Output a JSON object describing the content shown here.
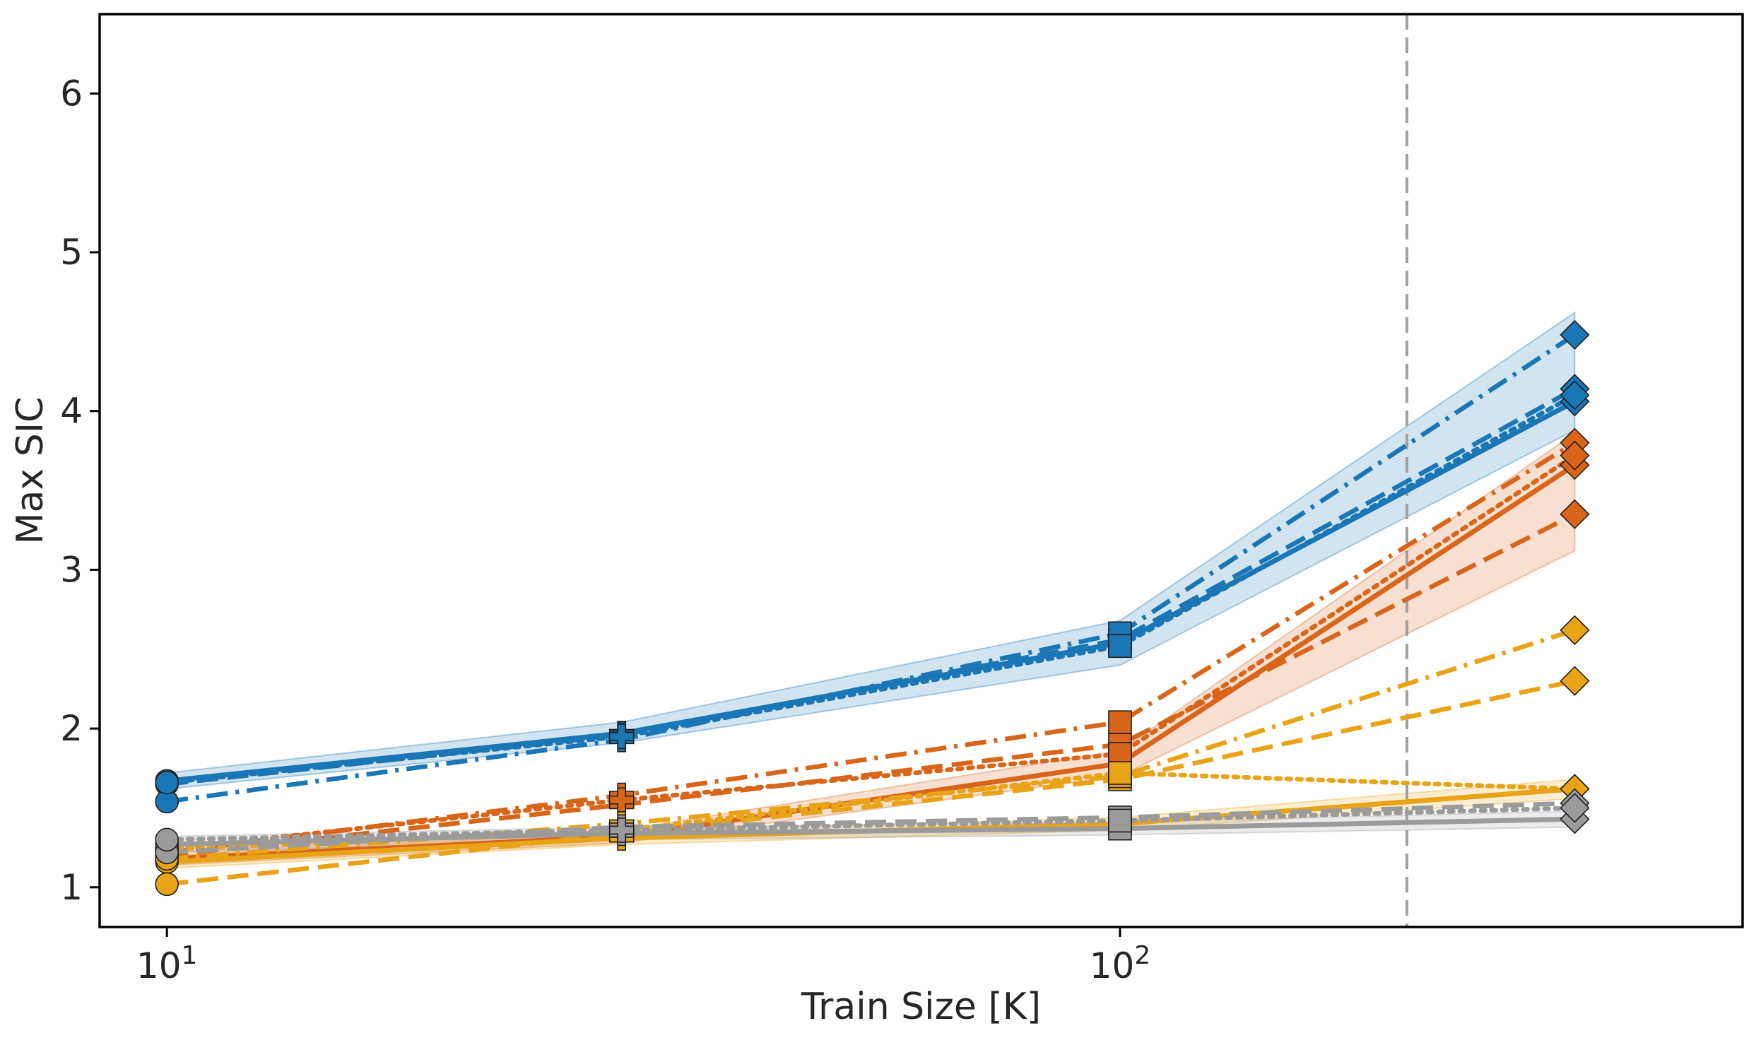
{
  "chart_data": {
    "type": "line",
    "title": "",
    "xlabel": "Train Size [K]",
    "ylabel": "Max SIC",
    "xscale": "log",
    "xlim": [
      8.5,
      450
    ],
    "ylim": [
      0.75,
      6.5
    ],
    "x": [
      10,
      30,
      100,
      300
    ],
    "xticks": [
      10,
      100
    ],
    "xtick_labels": [
      {
        "base": "10",
        "exp": "1"
      },
      {
        "base": "10",
        "exp": "2"
      }
    ],
    "yticks": [
      1,
      2,
      3,
      4,
      5,
      6
    ],
    "ytick_labels": [
      "1",
      "2",
      "3",
      "4",
      "5",
      "6"
    ],
    "marker_sequence": [
      "circle",
      "plus",
      "square",
      "diamond"
    ],
    "reference_line": {
      "x": 200,
      "style": "dashed",
      "color": "#a0a0a0"
    },
    "grid": false,
    "legend": "none",
    "series": [
      {
        "color": "#1a76b4",
        "style": "solid",
        "values": [
          1.67,
          1.97,
          2.54,
          4.06
        ],
        "band": [
          [
            1.62,
            1.72
          ],
          [
            1.91,
            2.04
          ],
          [
            2.4,
            2.68
          ],
          [
            3.88,
            4.62
          ]
        ]
      },
      {
        "color": "#1a76b4",
        "style": "dashed",
        "values": [
          1.65,
          1.96,
          2.56,
          4.14
        ]
      },
      {
        "color": "#1a76b4",
        "style": "dashdot",
        "values": [
          1.54,
          1.93,
          2.6,
          4.48
        ]
      },
      {
        "color": "#1a76b4",
        "style": "dotted",
        "values": [
          1.66,
          1.95,
          2.52,
          4.1
        ]
      },
      {
        "color": "#d9651a",
        "style": "solid",
        "values": [
          1.18,
          1.32,
          1.78,
          3.66
        ],
        "band": [
          [
            1.14,
            1.22
          ],
          [
            1.28,
            1.36
          ],
          [
            1.7,
            1.86
          ],
          [
            3.12,
            3.86
          ]
        ]
      },
      {
        "color": "#d9651a",
        "style": "dashed",
        "values": [
          1.2,
          1.52,
          1.9,
          3.35
        ]
      },
      {
        "color": "#d9651a",
        "style": "dashdot",
        "values": [
          1.22,
          1.58,
          2.04,
          3.8
        ]
      },
      {
        "color": "#d9651a",
        "style": "dotted",
        "values": [
          1.24,
          1.55,
          1.84,
          3.72
        ]
      },
      {
        "color": "#e8a317",
        "style": "solid",
        "values": [
          1.16,
          1.31,
          1.4,
          1.62
        ],
        "band": [
          [
            1.12,
            1.2
          ],
          [
            1.27,
            1.35
          ],
          [
            1.36,
            1.44
          ],
          [
            1.56,
            1.68
          ]
        ]
      },
      {
        "color": "#e8a317",
        "style": "dashed",
        "values": [
          1.02,
          1.34,
          1.68,
          2.3
        ]
      },
      {
        "color": "#e8a317",
        "style": "dashdot",
        "values": [
          1.18,
          1.4,
          1.7,
          2.62
        ]
      },
      {
        "color": "#e8a317",
        "style": "dotted",
        "values": [
          1.24,
          1.36,
          1.72,
          1.62
        ]
      },
      {
        "color": "#9b9b9b",
        "style": "solid",
        "values": [
          1.27,
          1.34,
          1.37,
          1.43
        ],
        "band": [
          [
            1.22,
            1.32
          ],
          [
            1.3,
            1.38
          ],
          [
            1.33,
            1.41
          ],
          [
            1.38,
            1.48
          ]
        ]
      },
      {
        "color": "#9b9b9b",
        "style": "dashed",
        "values": [
          1.22,
          1.38,
          1.44,
          1.53
        ]
      },
      {
        "color": "#9b9b9b",
        "style": "dotted",
        "values": [
          1.3,
          1.36,
          1.42,
          1.5
        ]
      }
    ]
  }
}
